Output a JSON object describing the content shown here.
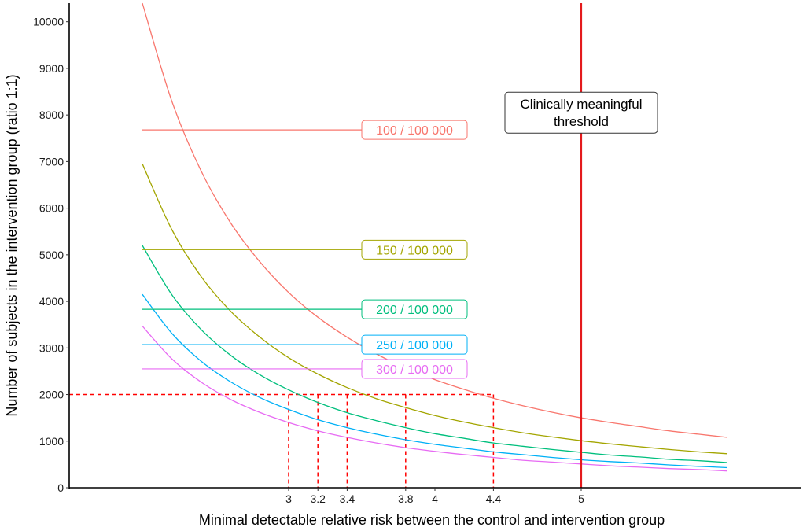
{
  "chart_data": {
    "type": "line",
    "xlabel": "Minimal detectable relative risk between the control and intervention group",
    "ylabel": "Number of subjects in the intervention group (ratio 1:1)",
    "xlim": [
      1.5,
      6.5
    ],
    "ylim": [
      0,
      10400
    ],
    "x_ticks": [
      3,
      3.2,
      3.4,
      3.8,
      4,
      4.4,
      5
    ],
    "x_tick_labels": [
      "3",
      "3.2",
      "3.4",
      "3.8",
      "4",
      "4.4",
      "5"
    ],
    "y_ticks": [
      0,
      1000,
      2000,
      3000,
      4000,
      5000,
      6000,
      7000,
      8000,
      9000,
      10000
    ],
    "y_tick_labels": [
      "0",
      "1000",
      "2000",
      "3000",
      "4000",
      "5000",
      "6000",
      "7000",
      "8000",
      "9000",
      "10000"
    ],
    "grid": false,
    "series": [
      {
        "name": "100 / 100 000",
        "color": "#F8766D",
        "label_y": 7680,
        "x": [
          2.0,
          2.2,
          2.4,
          2.6,
          2.8,
          3.0,
          3.2,
          3.4,
          3.6,
          3.8,
          4.0,
          4.2,
          4.4,
          4.6,
          4.8,
          5.0,
          5.2,
          5.4,
          5.6,
          5.8,
          6.0
        ],
        "values": [
          10400,
          8310,
          6810,
          5700,
          4860,
          4190,
          3660,
          3230,
          2870,
          2570,
          2320,
          2110,
          1920,
          1760,
          1620,
          1500,
          1400,
          1310,
          1220,
          1150,
          1080
        ]
      },
      {
        "name": "150 / 100 000",
        "color": "#A3A500",
        "label_y": 5110,
        "x": [
          2.0,
          2.2,
          2.4,
          2.6,
          2.8,
          3.0,
          3.2,
          3.4,
          3.6,
          3.8,
          4.0,
          4.2,
          4.4,
          4.6,
          4.8,
          5.0,
          5.2,
          5.4,
          5.6,
          5.8,
          6.0
        ],
        "values": [
          6950,
          5550,
          4540,
          3800,
          3240,
          2790,
          2440,
          2150,
          1910,
          1720,
          1550,
          1410,
          1290,
          1180,
          1090,
          1010,
          940,
          880,
          820,
          770,
          730
        ]
      },
      {
        "name": "200 / 100 000",
        "color": "#00BF7D",
        "label_y": 3830,
        "x": [
          2.0,
          2.2,
          2.4,
          2.6,
          2.8,
          3.0,
          3.2,
          3.4,
          3.6,
          3.8,
          4.0,
          4.2,
          4.4,
          4.6,
          4.8,
          5.0,
          5.2,
          5.4,
          5.6,
          5.8,
          6.0
        ],
        "values": [
          5200,
          4150,
          3400,
          2850,
          2430,
          2100,
          1830,
          1610,
          1440,
          1290,
          1160,
          1060,
          960,
          890,
          820,
          760,
          700,
          660,
          610,
          580,
          540
        ]
      },
      {
        "name": "250 / 100 000",
        "color": "#00B0F6",
        "label_y": 3070,
        "x": [
          2.0,
          2.2,
          2.4,
          2.6,
          2.8,
          3.0,
          3.2,
          3.4,
          3.6,
          3.8,
          4.0,
          4.2,
          4.4,
          4.6,
          4.8,
          5.0,
          5.2,
          5.4,
          5.6,
          5.8,
          6.0
        ],
        "values": [
          4150,
          3320,
          2720,
          2280,
          1940,
          1680,
          1460,
          1290,
          1150,
          1030,
          930,
          850,
          770,
          710,
          650,
          600,
          560,
          530,
          490,
          460,
          430
        ]
      },
      {
        "name": "300 / 100 000",
        "color": "#E76BF3",
        "label_y": 2550,
        "x": [
          2.0,
          2.2,
          2.4,
          2.6,
          2.8,
          3.0,
          3.2,
          3.4,
          3.6,
          3.8,
          4.0,
          4.2,
          4.4,
          4.6,
          4.8,
          5.0,
          5.2,
          5.4,
          5.6,
          5.8,
          6.0
        ],
        "values": [
          3470,
          2770,
          2270,
          1900,
          1620,
          1400,
          1220,
          1080,
          960,
          860,
          780,
          710,
          650,
          590,
          550,
          510,
          470,
          440,
          410,
          390,
          360
        ]
      }
    ],
    "reference_lines": {
      "horizontal_y": 2000,
      "vertical_x": [
        3,
        3.2,
        3.4,
        3.8,
        4.4
      ],
      "color": "#FF0000",
      "style": "dashed"
    },
    "threshold": {
      "x": 5,
      "color": "#E41A1C",
      "label_line1": "Clinically meaningful",
      "label_line2": "threshold",
      "label_y": 8050
    },
    "series_label_start_x": 2.0,
    "series_label_box_x": 3.5
  }
}
